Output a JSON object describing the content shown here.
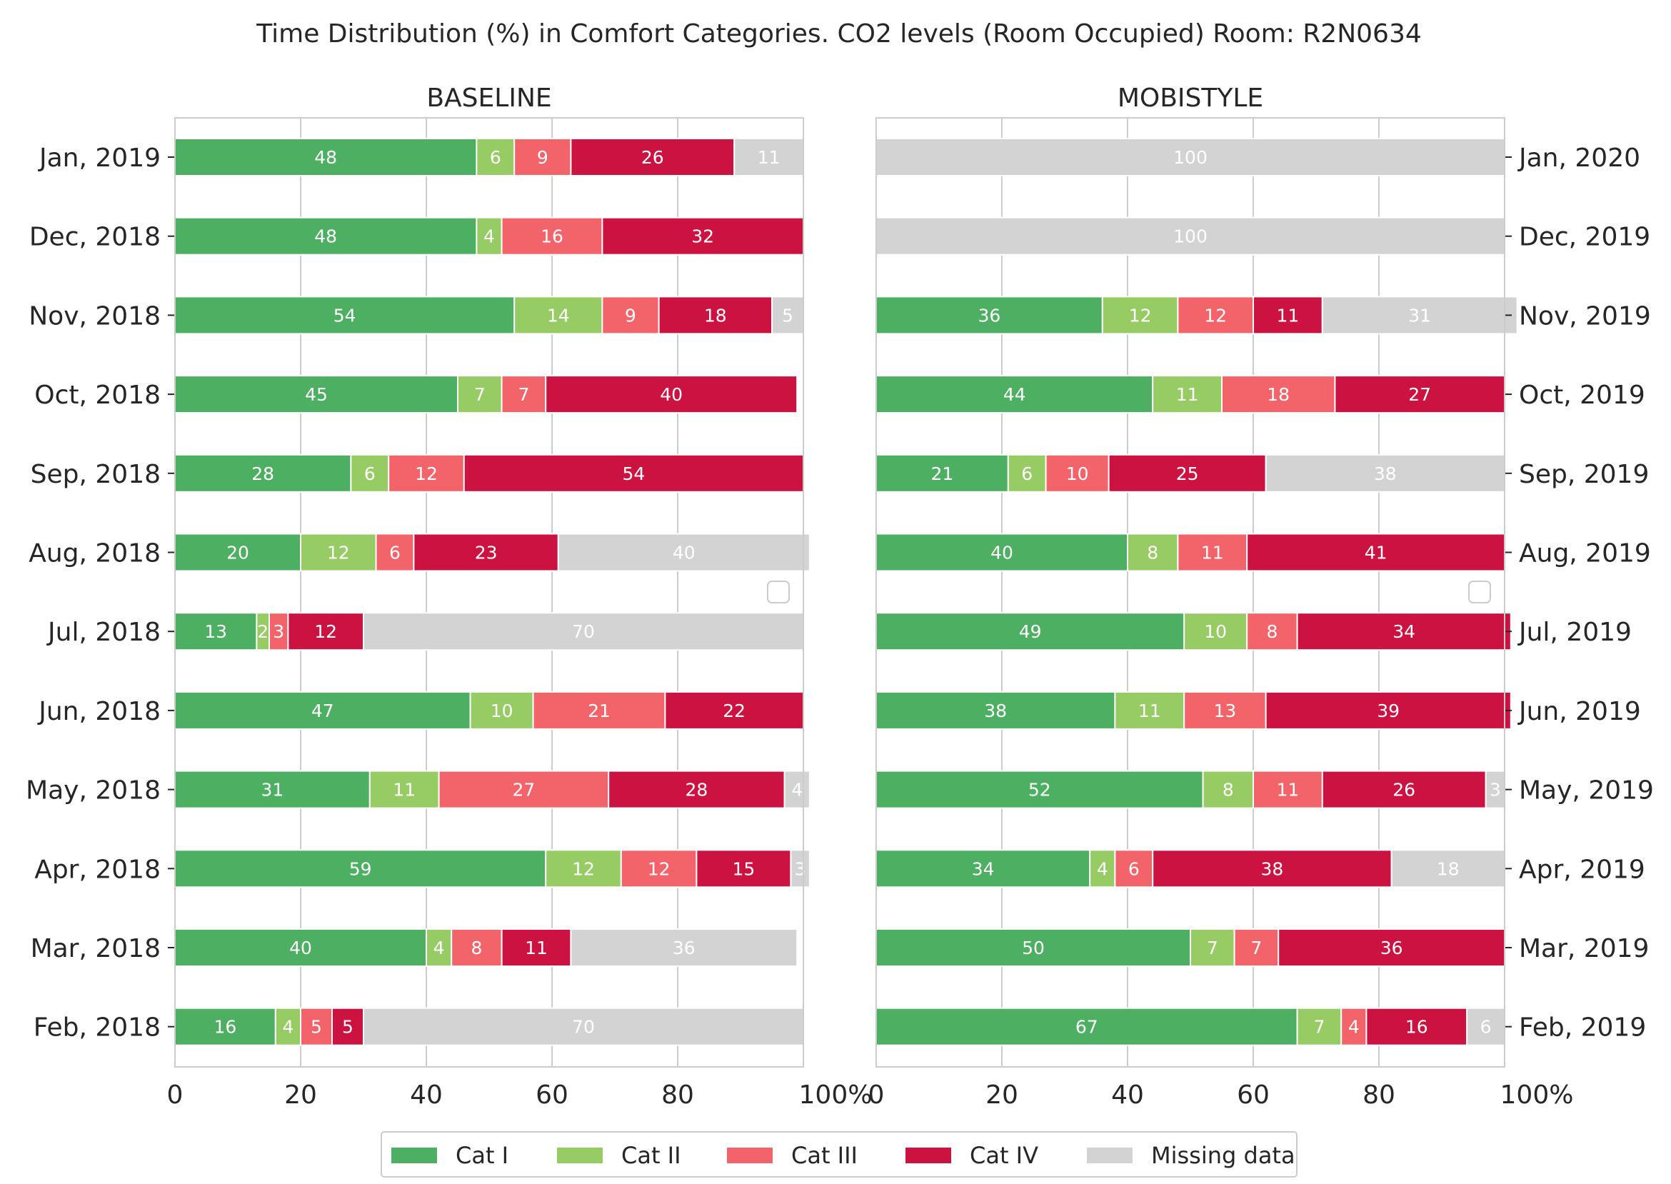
{
  "chart_data": {
    "type": "bar",
    "orientation": "horizontal",
    "stacked": true,
    "title": "Time Distribution (%) in Comfort Categories. CO2 levels (Room Occupied) Room: R2N0634",
    "xlim": [
      0,
      100
    ],
    "x_ticks": [
      "0",
      "20",
      "40",
      "60",
      "80",
      "100%"
    ],
    "grid": true,
    "legend_placement": "bottom-center",
    "categories_meta": [
      {
        "name": "Cat I",
        "color": "#4daf62"
      },
      {
        "name": "Cat II",
        "color": "#97cb64"
      },
      {
        "name": "Cat III",
        "color": "#f2636a"
      },
      {
        "name": "Cat IV",
        "color": "#cc1241"
      },
      {
        "name": "Missing data",
        "color": "#d3d3d3"
      }
    ],
    "panels": [
      {
        "title": "BASELINE",
        "label_side": "left",
        "rows": [
          {
            "label": "Jan, 2019",
            "values": [
              48,
              6,
              9,
              26,
              11
            ]
          },
          {
            "label": "Dec, 2018",
            "values": [
              48,
              4,
              16,
              32,
              0
            ]
          },
          {
            "label": "Nov, 2018",
            "values": [
              54,
              14,
              9,
              18,
              5
            ]
          },
          {
            "label": "Oct, 2018",
            "values": [
              45,
              7,
              7,
              40,
              0
            ]
          },
          {
            "label": "Sep, 2018",
            "values": [
              28,
              6,
              12,
              54,
              0
            ]
          },
          {
            "label": "Aug, 2018",
            "values": [
              20,
              12,
              6,
              23,
              40
            ]
          },
          {
            "label": "Jul, 2018",
            "values": [
              13,
              2,
              3,
              12,
              70
            ]
          },
          {
            "label": "Jun, 2018",
            "values": [
              47,
              10,
              21,
              22,
              0
            ]
          },
          {
            "label": "May, 2018",
            "values": [
              31,
              11,
              27,
              28,
              4
            ]
          },
          {
            "label": "Apr, 2018",
            "values": [
              59,
              12,
              12,
              15,
              3
            ]
          },
          {
            "label": "Mar, 2018",
            "values": [
              40,
              4,
              8,
              11,
              36
            ]
          },
          {
            "label": "Feb, 2018",
            "values": [
              16,
              4,
              5,
              5,
              70
            ]
          }
        ]
      },
      {
        "title": "MOBISTYLE",
        "label_side": "right",
        "rows": [
          {
            "label": "Jan, 2020",
            "values": [
              0,
              0,
              0,
              0,
              100
            ]
          },
          {
            "label": "Dec, 2019",
            "values": [
              0,
              0,
              0,
              0,
              100
            ]
          },
          {
            "label": "Nov, 2019",
            "values": [
              36,
              12,
              12,
              11,
              31
            ]
          },
          {
            "label": "Oct, 2019",
            "values": [
              44,
              11,
              18,
              27,
              0
            ]
          },
          {
            "label": "Sep, 2019",
            "values": [
              21,
              6,
              10,
              25,
              38
            ]
          },
          {
            "label": "Aug, 2019",
            "values": [
              40,
              8,
              11,
              41,
              0
            ]
          },
          {
            "label": "Jul, 2019",
            "values": [
              49,
              10,
              8,
              34,
              0
            ]
          },
          {
            "label": "Jun, 2019",
            "values": [
              38,
              11,
              13,
              39,
              0
            ]
          },
          {
            "label": "May, 2019",
            "values": [
              52,
              8,
              11,
              26,
              3
            ]
          },
          {
            "label": "Apr, 2019",
            "values": [
              34,
              4,
              6,
              38,
              18
            ]
          },
          {
            "label": "Mar, 2019",
            "values": [
              50,
              7,
              7,
              36,
              0
            ]
          },
          {
            "label": "Feb, 2019",
            "values": [
              67,
              7,
              4,
              16,
              6
            ]
          }
        ]
      }
    ]
  }
}
